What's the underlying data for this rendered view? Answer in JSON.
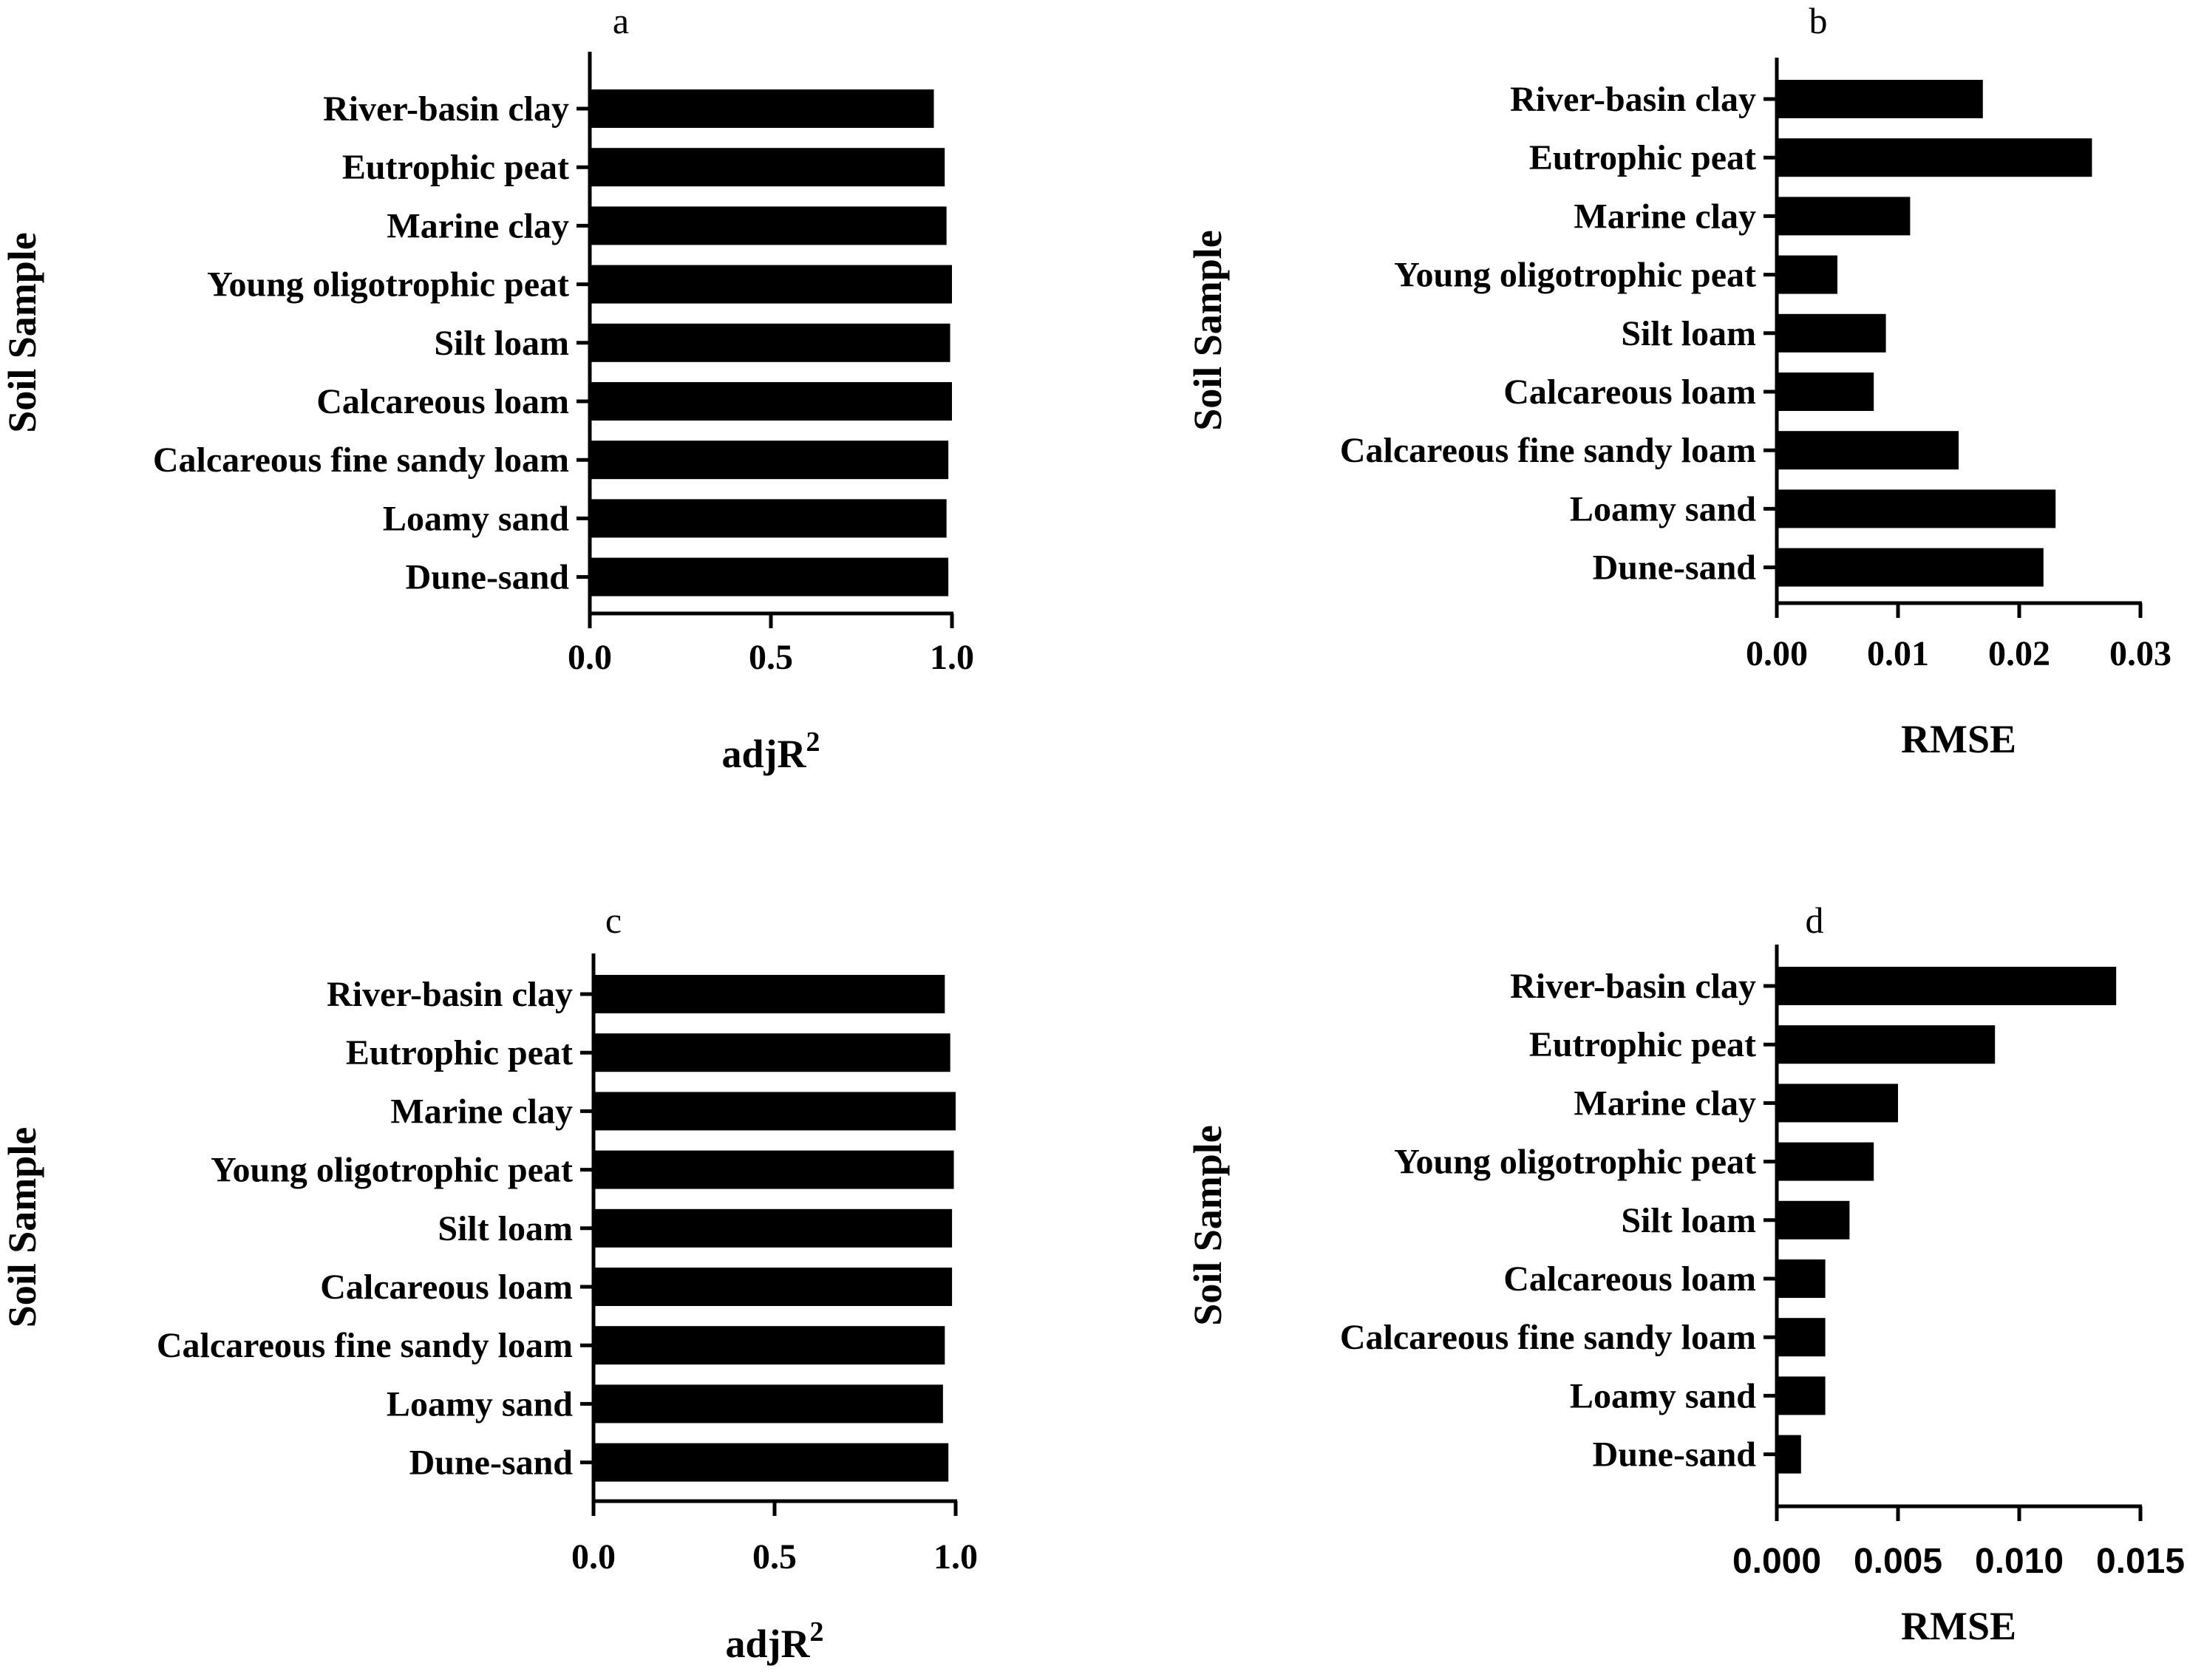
{
  "chart_data": [
    {
      "type": "bar",
      "orientation": "horizontal",
      "panel": "a",
      "categories": [
        "River-basin clay",
        "Eutrophic peat",
        "Marine clay",
        "Young oligotrophic peat",
        "Silt loam",
        "Calcareous loam",
        "Calcareous fine sandy loam",
        "Loamy sand",
        "Dune-sand"
      ],
      "values": [
        0.95,
        0.98,
        0.985,
        1.0,
        0.995,
        1.0,
        0.99,
        0.985,
        0.99
      ],
      "xlabel": "adjR",
      "xlabel_sup": "2",
      "ylabel": "Soil Sample",
      "xlim": [
        0,
        1.0
      ],
      "ticks": [
        0,
        0.5,
        1.0
      ],
      "tick_labels": [
        "0.0",
        "0.5",
        "1.0"
      ],
      "color": "#000000"
    },
    {
      "type": "bar",
      "orientation": "horizontal",
      "panel": "b",
      "categories": [
        "River-basin clay",
        "Eutrophic peat",
        "Marine clay",
        "Young oligotrophic peat",
        "Silt loam",
        "Calcareous loam",
        "Calcareous fine sandy loam",
        "Loamy sand",
        "Dune-sand"
      ],
      "values": [
        0.017,
        0.026,
        0.011,
        0.005,
        0.009,
        0.008,
        0.015,
        0.023,
        0.022
      ],
      "xlabel": "RMSE",
      "xlabel_sup": "",
      "ylabel": "Soil Sample",
      "xlim": [
        0,
        0.03
      ],
      "ticks": [
        0,
        0.01,
        0.02,
        0.03
      ],
      "tick_labels": [
        "0.00",
        "0.01",
        "0.02",
        "0.03"
      ],
      "color": "#000000"
    },
    {
      "type": "bar",
      "orientation": "horizontal",
      "panel": "c",
      "categories": [
        "River-basin clay",
        "Eutrophic peat",
        "Marine clay",
        "Young oligotrophic peat",
        "Silt loam",
        "Calcareous loam",
        "Calcareous fine sandy loam",
        "Loamy sand",
        "Dune-sand"
      ],
      "values": [
        0.97,
        0.985,
        1.0,
        0.995,
        0.99,
        0.99,
        0.97,
        0.965,
        0.98
      ],
      "xlabel": "adjR",
      "xlabel_sup": "2",
      "ylabel": "Soil Sample",
      "xlim": [
        0,
        1.0
      ],
      "ticks": [
        0,
        0.5,
        1.0
      ],
      "tick_labels": [
        "0.0",
        "0.5",
        "1.0"
      ],
      "color": "#000000"
    },
    {
      "type": "bar",
      "orientation": "horizontal",
      "panel": "d",
      "categories": [
        "River-basin clay",
        "Eutrophic peat",
        "Marine clay",
        "Young oligotrophic peat",
        "Silt loam",
        "Calcareous loam",
        "Calcareous fine sandy loam",
        "Loamy sand",
        "Dune-sand"
      ],
      "values": [
        0.014,
        0.009,
        0.005,
        0.004,
        0.003,
        0.002,
        0.002,
        0.002,
        0.001
      ],
      "xlabel": "RMSE",
      "xlabel_sup": "",
      "ylabel": "Soil Sample",
      "xlim": [
        0,
        0.015
      ],
      "ticks": [
        0,
        0.005,
        0.01,
        0.015
      ],
      "tick_labels": [
        "0.000",
        "0.005",
        "0.010",
        "0.015"
      ],
      "color": "#000000"
    }
  ]
}
